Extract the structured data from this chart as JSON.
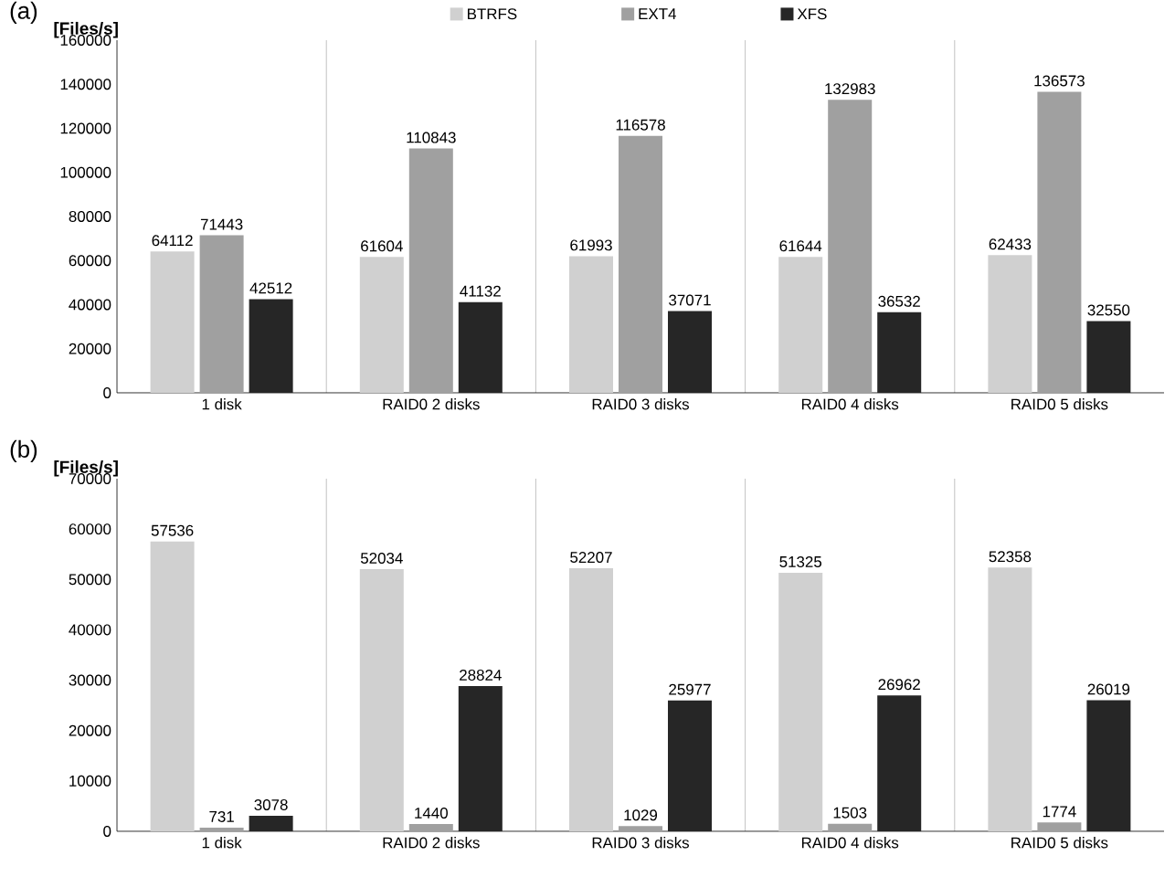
{
  "chart_data": [
    {
      "type": "bar",
      "title": "(a)",
      "ylabel": "[Files/s]",
      "categories": [
        "1 disk",
        "RAID0 2 disks",
        "RAID0 3 disks",
        "RAID0 4 disks",
        "RAID0 5 disks"
      ],
      "series": [
        {
          "name": "BTRFS",
          "color": "#d0d0d0",
          "values": [
            64112,
            61604,
            61993,
            61644,
            62433
          ]
        },
        {
          "name": "EXT4",
          "color": "#a0a0a0",
          "values": [
            71443,
            110843,
            116578,
            132983,
            136573
          ]
        },
        {
          "name": "XFS",
          "color": "#262626",
          "values": [
            42512,
            41132,
            37071,
            36532,
            32550
          ]
        }
      ],
      "ylim": [
        0,
        160000
      ],
      "yticks": [
        0,
        20000,
        40000,
        60000,
        80000,
        100000,
        120000,
        140000,
        160000
      ],
      "grid": "x",
      "legend": "top",
      "data_labels": true
    },
    {
      "type": "bar",
      "title": "(b)",
      "ylabel": "[Files/s]",
      "categories": [
        "1 disk",
        "RAID0 2 disks",
        "RAID0 3 disks",
        "RAID0 4 disks",
        "RAID0 5 disks"
      ],
      "series": [
        {
          "color": "#d0d0d0",
          "values": [
            57536,
            52034,
            52207,
            51325,
            52358
          ]
        },
        {
          "color": "#a0a0a0",
          "values": [
            731,
            1440,
            1029,
            1503,
            1774
          ]
        },
        {
          "color": "#262626",
          "values": [
            3078,
            28824,
            25977,
            26962,
            26019
          ]
        }
      ],
      "ylim": [
        0,
        70000
      ],
      "yticks": [
        0,
        10000,
        20000,
        30000,
        40000,
        50000,
        60000,
        70000
      ],
      "grid": "x",
      "data_labels": true
    }
  ]
}
